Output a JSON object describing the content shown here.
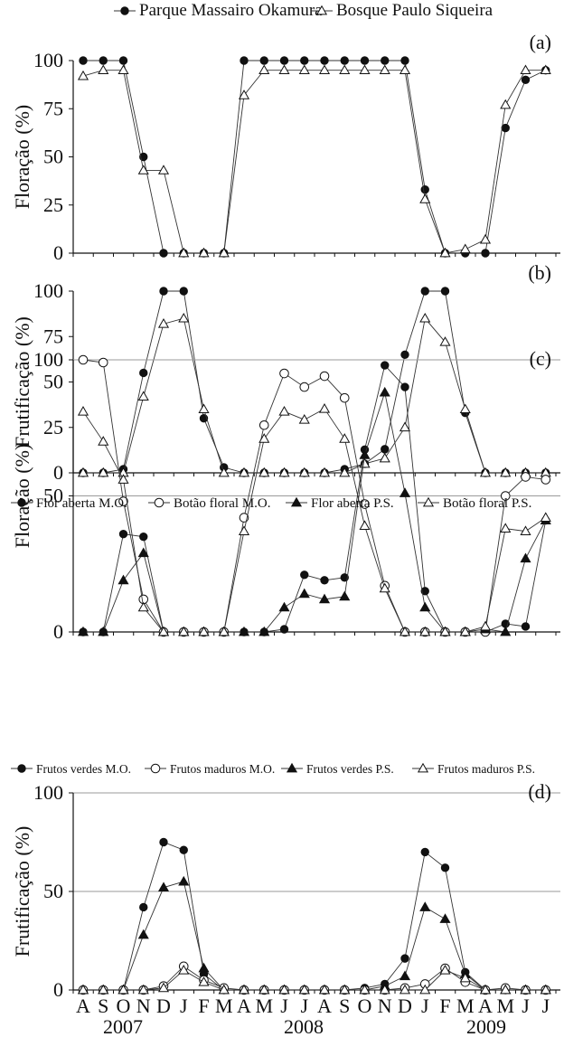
{
  "months": [
    "A",
    "S",
    "O",
    "N",
    "D",
    "J",
    "F",
    "M",
    "A",
    "M",
    "J",
    "J",
    "A",
    "S",
    "O",
    "N",
    "D",
    "J",
    "F",
    "M",
    "A",
    "M",
    "J",
    "J"
  ],
  "years": [
    "2007",
    "2008",
    "2009"
  ],
  "chart_data": [
    {
      "type": "line",
      "panel_label": "(a)",
      "ylabel": "Floração (%)",
      "ylim": [
        0,
        100
      ],
      "yticks": [
        "0",
        "25",
        "50",
        "75",
        "100"
      ],
      "grid": false,
      "legend_position": "top",
      "series": [
        {
          "name": "Parque Massairo Okamura",
          "marker": "filled-circle",
          "values": [
            100,
            100,
            100,
            50,
            0,
            0,
            0,
            0,
            100,
            100,
            100,
            100,
            100,
            100,
            100,
            100,
            100,
            33,
            0,
            0,
            0,
            65,
            90,
            95
          ]
        },
        {
          "name": "Bosque Paulo Siqueira",
          "marker": "open-triangle",
          "values": [
            92,
            95,
            95,
            43,
            43,
            0,
            0,
            0,
            82,
            95,
            95,
            95,
            95,
            95,
            95,
            95,
            95,
            28,
            0,
            2,
            7,
            77,
            95,
            95
          ]
        }
      ]
    },
    {
      "type": "line",
      "panel_label": "(b)",
      "ylabel": "Frutificação (%)",
      "ylim": [
        0,
        100
      ],
      "yticks": [
        "0",
        "25",
        "50",
        "75",
        "100"
      ],
      "grid": false,
      "series": [
        {
          "name": "",
          "marker": "filled-circle",
          "values": [
            0,
            0,
            2,
            55,
            100,
            100,
            30,
            3,
            0,
            0,
            0,
            0,
            0,
            2,
            5,
            13,
            65,
            100,
            100,
            33,
            0,
            0,
            0,
            0
          ]
        },
        {
          "name": "",
          "marker": "open-triangle",
          "values": [
            0,
            0,
            0,
            42,
            82,
            85,
            35,
            0,
            0,
            0,
            0,
            0,
            0,
            0,
            5,
            8,
            25,
            85,
            72,
            35,
            0,
            0,
            0,
            0
          ]
        }
      ]
    },
    {
      "type": "line",
      "panel_label": "(c)",
      "ylabel": "Floração (%)",
      "ylim": [
        0,
        100
      ],
      "yticks": [
        "0",
        "50",
        "100"
      ],
      "grid": true,
      "legend_position": "top",
      "series": [
        {
          "name": "Flor aberta M.O.",
          "marker": "filled-circle",
          "values": [
            0,
            0,
            36,
            35,
            0,
            0,
            0,
            0,
            0,
            0,
            1,
            21,
            19,
            20,
            67,
            98,
            90,
            15,
            0,
            0,
            0,
            3,
            2,
            41
          ]
        },
        {
          "name": "Botão floral M.O.",
          "marker": "open-circle",
          "values": [
            100,
            99,
            48,
            12,
            0,
            0,
            0,
            0,
            42,
            76,
            95,
            90,
            94,
            86,
            47,
            17,
            0,
            0,
            0,
            0,
            0,
            50,
            57,
            56
          ]
        },
        {
          "name": "Flor aberta P.S.",
          "marker": "filled-triangle",
          "values": [
            0,
            0,
            19,
            29,
            0,
            0,
            0,
            0,
            0,
            0,
            9,
            14,
            12,
            13,
            65,
            88,
            51,
            9,
            0,
            0,
            1,
            0,
            27,
            41
          ]
        },
        {
          "name": "Botão floral P.S.",
          "marker": "open-triangle",
          "values": [
            81,
            70,
            56,
            9,
            0,
            0,
            0,
            0,
            37,
            71,
            81,
            78,
            82,
            71,
            39,
            16,
            0,
            0,
            0,
            0,
            2,
            38,
            37,
            42
          ]
        }
      ]
    },
    {
      "type": "line",
      "panel_label": "(d)",
      "ylabel": "Frutificação (%)",
      "ylim": [
        0,
        100
      ],
      "yticks": [
        "0",
        "50",
        "100"
      ],
      "grid": true,
      "legend_position": "top",
      "series": [
        {
          "name": "Frutos verdes M.O.",
          "marker": "filled-circle",
          "values": [
            0,
            0,
            0,
            42,
            75,
            71,
            8,
            0,
            0,
            0,
            0,
            0,
            0,
            0,
            1,
            3,
            16,
            70,
            62,
            9,
            0,
            0,
            0,
            0
          ]
        },
        {
          "name": "Frutos maduros M.O.",
          "marker": "open-circle",
          "values": [
            0,
            0,
            0,
            0,
            2,
            12,
            5,
            1,
            0,
            0,
            0,
            0,
            0,
            0,
            0,
            0,
            1,
            3,
            11,
            4,
            0,
            1,
            0,
            0
          ]
        },
        {
          "name": "Frutos verdes P.S.",
          "marker": "filled-triangle",
          "values": [
            0,
            0,
            0,
            28,
            52,
            55,
            11,
            0,
            0,
            0,
            0,
            0,
            0,
            0,
            0,
            2,
            7,
            42,
            36,
            8,
            0,
            0,
            0,
            0
          ]
        },
        {
          "name": "Frutos maduros P.S.",
          "marker": "open-triangle",
          "values": [
            0,
            0,
            0,
            0,
            1,
            10,
            4,
            0,
            0,
            0,
            0,
            0,
            0,
            0,
            0,
            0,
            0,
            0,
            10,
            6,
            0,
            0,
            0,
            0
          ]
        }
      ]
    }
  ]
}
